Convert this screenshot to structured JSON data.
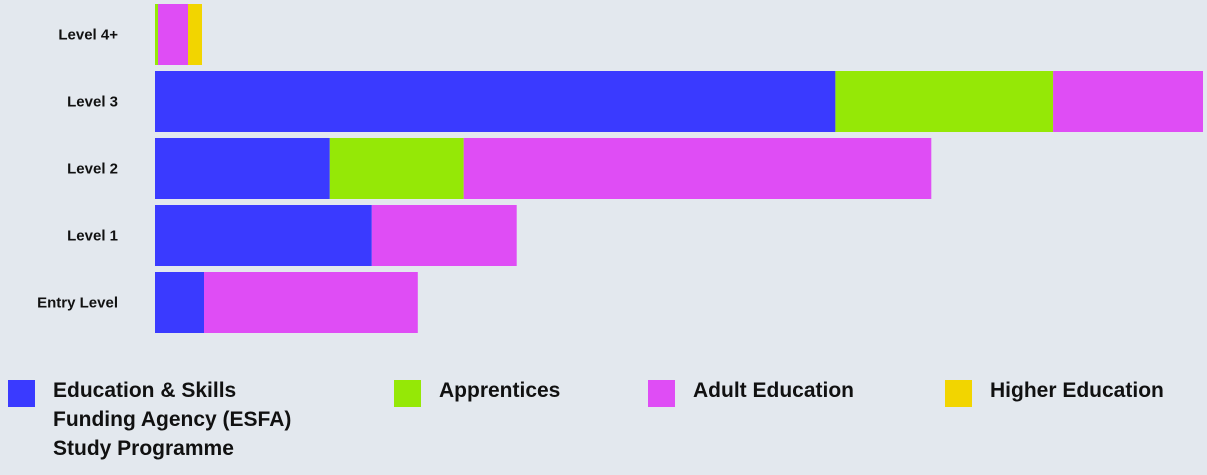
{
  "chart_data": {
    "type": "bar",
    "orientation": "horizontal",
    "stacked": true,
    "categories": [
      "Level 4+",
      "Level 3",
      "Level 2",
      "Level 1",
      "Entry Level"
    ],
    "series": [
      {
        "name": "Education & Skills Funding Agency (ESFA) Study Programme",
        "color": "#3a3aff",
        "values": [
          0,
          681,
          175,
          217,
          49
        ]
      },
      {
        "name": "Apprentices",
        "color": "#95e806",
        "values": [
          3,
          218,
          134,
          0,
          0
        ]
      },
      {
        "name": "Adult Education",
        "color": "#df4df5",
        "values": [
          30,
          150,
          468,
          145,
          214
        ]
      },
      {
        "name": "Higher Education",
        "color": "#f2d500",
        "values": [
          14,
          0,
          0,
          0,
          0
        ]
      }
    ],
    "xlim": [
      0,
      1050
    ],
    "grid": false,
    "legend_position": "bottom"
  },
  "legend": {
    "items": [
      {
        "lines": [
          "Education & Skills",
          "Funding Agency (ESFA)",
          "Study Programme"
        ],
        "color": "#3a3aff"
      },
      {
        "lines": [
          "Apprentices"
        ],
        "color": "#95e806"
      },
      {
        "lines": [
          "Adult Education"
        ],
        "color": "#df4df5"
      },
      {
        "lines": [
          "Higher Education"
        ],
        "color": "#f2d500"
      }
    ]
  }
}
